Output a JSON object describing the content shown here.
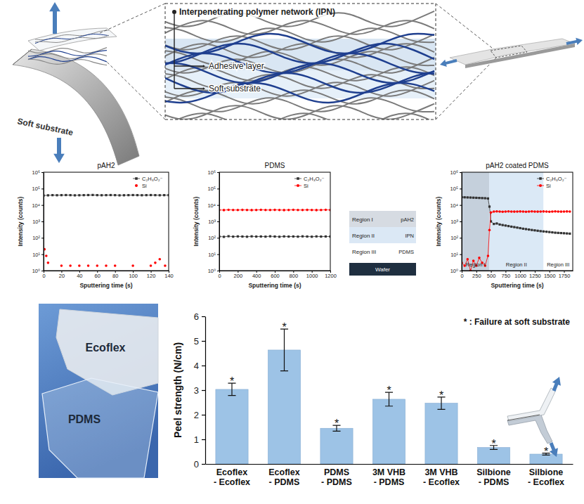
{
  "diagram": {
    "title": "Interpenetrating polymer network (IPN)",
    "layers": [
      "Adhesive layer",
      "Soft substrate"
    ],
    "substrate_label": "Soft substrate"
  },
  "chart_data": [
    {
      "type": "line",
      "title": "pAH2",
      "x_label": "Sputtering time (s)",
      "y_label": "Intensity (counts)",
      "log": "y",
      "xlim": [
        0,
        140
      ],
      "xticks": [
        0,
        20,
        40,
        60,
        80,
        100,
        120,
        140
      ],
      "ylim": [
        1,
        1000000
      ],
      "yticks": [
        {
          "value": 1,
          "label": "10⁰"
        },
        {
          "value": 10,
          "label": "10¹"
        },
        {
          "value": 100,
          "label": "10²"
        },
        {
          "value": 1000,
          "label": "10³"
        },
        {
          "value": 10000,
          "label": "10⁴"
        },
        {
          "value": 100000,
          "label": "10⁵"
        },
        {
          "value": 1000000,
          "label": "10⁶"
        }
      ],
      "legend": "upper right",
      "series": [
        {
          "name": "C₂H₃O₂⁻",
          "color": "#333333",
          "marker": "square",
          "x": [
            0,
            5,
            10,
            15,
            20,
            25,
            30,
            35,
            40,
            45,
            50,
            55,
            60,
            65,
            70,
            75,
            80,
            85,
            90,
            95,
            100,
            105,
            110,
            115,
            120,
            125,
            130,
            135,
            140
          ],
          "values": [
            38000,
            39000,
            40000,
            39500,
            40000,
            40500,
            40000,
            39000,
            39500,
            40000,
            40500,
            41000,
            40000,
            39500,
            40000,
            40500,
            40000,
            39000,
            39500,
            40000,
            40500,
            40000,
            39500,
            40000,
            40500,
            40000,
            39500,
            40000,
            40000
          ]
        },
        {
          "name": "Si",
          "color": "#ff0000",
          "marker": "circle",
          "type": "scatter",
          "x": [
            1,
            3,
            5,
            20,
            30,
            40,
            50,
            60,
            70,
            80,
            100,
            120,
            125,
            130,
            136
          ],
          "values": [
            20,
            8,
            3,
            2,
            2,
            2,
            2,
            2,
            2,
            2,
            2,
            2,
            3,
            5,
            2
          ]
        }
      ]
    },
    {
      "type": "line",
      "title": "PDMS",
      "x_label": "Sputtering time (s)",
      "y_label": "Intensity (counts)",
      "log": "y",
      "xlim": [
        0,
        1200
      ],
      "xticks": [
        0,
        200,
        400,
        600,
        800,
        1000,
        1200
      ],
      "ylim": [
        1,
        1000000
      ],
      "yticks": [
        {
          "value": 1,
          "label": "10⁰"
        },
        {
          "value": 10,
          "label": "10¹"
        },
        {
          "value": 100,
          "label": "10²"
        },
        {
          "value": 1000,
          "label": "10³"
        },
        {
          "value": 10000,
          "label": "10⁴"
        },
        {
          "value": 100000,
          "label": "10⁵"
        },
        {
          "value": 1000000,
          "label": "10⁶"
        }
      ],
      "legend": "upper right",
      "series": [
        {
          "name": "C₂H₃O₂⁻",
          "color": "#333333",
          "marker": "square",
          "x": [
            0,
            50,
            100,
            150,
            200,
            250,
            300,
            350,
            400,
            450,
            500,
            550,
            600,
            650,
            700,
            750,
            800,
            850,
            900,
            950,
            1000,
            1050,
            1100,
            1150,
            1200
          ],
          "values": [
            120,
            115,
            125,
            118,
            122,
            120,
            117,
            123,
            119,
            121,
            118,
            124,
            120,
            116,
            122,
            119,
            121,
            118,
            123,
            120,
            117,
            122,
            119,
            121,
            120
          ]
        },
        {
          "name": "Si",
          "color": "#ff0000",
          "marker": "circle",
          "x": [
            0,
            50,
            100,
            150,
            200,
            250,
            300,
            350,
            400,
            450,
            500,
            550,
            600,
            650,
            700,
            750,
            800,
            850,
            900,
            950,
            1000,
            1050,
            1100,
            1150,
            1200
          ],
          "values": [
            5000,
            4900,
            5100,
            5000,
            4950,
            5050,
            5000,
            4900,
            5000,
            5100,
            5000,
            4950,
            5050,
            5000,
            4900,
            5000,
            5100,
            5000,
            4950,
            5050,
            5000,
            4900,
            5000,
            5100,
            5000
          ]
        }
      ]
    },
    {
      "type": "line",
      "title": "pAH2 coated PDMS",
      "x_label": "Sputtering time (s)",
      "y_label": "Intensity (counts)",
      "log": "y",
      "xlim": [
        0,
        1900
      ],
      "xticks": [
        0,
        250,
        500,
        750,
        1000,
        1250,
        1500,
        1750
      ],
      "ylim": [
        1,
        1000000
      ],
      "yticks": [
        {
          "value": 1,
          "label": "10⁰"
        },
        {
          "value": 10,
          "label": "10¹"
        },
        {
          "value": 100,
          "label": "10²"
        },
        {
          "value": 1000,
          "label": "10³"
        },
        {
          "value": 10000,
          "label": "10⁴"
        },
        {
          "value": 100000,
          "label": "10⁵"
        },
        {
          "value": 1000000,
          "label": "10⁶"
        }
      ],
      "legend": "upper right",
      "regions": [
        {
          "label": "Region I",
          "start": 0,
          "end": 470
        },
        {
          "label": "Region II",
          "start": 470,
          "end": 1400
        },
        {
          "label": "Region III",
          "start": 1400,
          "end": 1900
        }
      ],
      "series": [
        {
          "name": "C₂H₃O₂⁻",
          "color": "#333333",
          "marker": "square",
          "x": [
            0,
            50,
            100,
            150,
            200,
            250,
            300,
            350,
            400,
            450,
            475,
            500,
            550,
            600,
            650,
            700,
            750,
            800,
            850,
            900,
            950,
            1000,
            1050,
            1100,
            1150,
            1200,
            1250,
            1300,
            1350,
            1400,
            1450,
            1500,
            1550,
            1600,
            1650,
            1700,
            1750,
            1800,
            1850
          ],
          "values": [
            30000,
            29500,
            29000,
            28500,
            28000,
            27500,
            27000,
            26500,
            26000,
            25000,
            8000,
            1000,
            700,
            750,
            650,
            600,
            560,
            520,
            480,
            450,
            420,
            390,
            360,
            340,
            320,
            300,
            285,
            270,
            255,
            245,
            235,
            225,
            215,
            205,
            200,
            195,
            190,
            185,
            180
          ]
        },
        {
          "name": "Si",
          "color": "#ff0000",
          "marker": "circle",
          "x": [
            0,
            50,
            100,
            150,
            200,
            250,
            300,
            350,
            400,
            450,
            475,
            500,
            550,
            600,
            650,
            700,
            750,
            800,
            850,
            900,
            950,
            1000,
            1050,
            1100,
            1150,
            1200,
            1250,
            1300,
            1350,
            1400,
            1450,
            1500,
            1550,
            1600,
            1650,
            1700,
            1750,
            1800,
            1850
          ],
          "values": [
            3,
            2,
            5,
            1,
            4,
            2,
            6,
            3,
            2,
            8,
            300,
            3500,
            4000,
            4100,
            4000,
            3900,
            4000,
            4100,
            4000,
            3950,
            4000,
            4050,
            4000,
            3900,
            4000,
            4100,
            4000,
            3950,
            4000,
            4050,
            4000,
            3900,
            4000,
            4100,
            4000,
            3950,
            4000,
            4050,
            4000
          ]
        }
      ]
    },
    {
      "type": "bar",
      "y_label": "Peel strength (N/cm)",
      "categories": [
        "Ecoflex\n- Ecoflex",
        "Ecoflex\n- PDMS",
        "PDMS\n- PDMS",
        "3M VHB\n- PDMS",
        "3M VHB\n- Ecoflex",
        "Silbione\n- PDMS",
        "Silbione\n- Ecoflex"
      ],
      "values": [
        3.03,
        4.63,
        1.45,
        2.63,
        2.47,
        0.67,
        0.4
      ],
      "errors": [
        0.25,
        0.85,
        0.12,
        0.28,
        0.25,
        0.08,
        0.04
      ],
      "bar_notes": [
        "*",
        "*",
        "*",
        "*",
        "*",
        "*",
        "*"
      ],
      "annotation": "* : Failure at soft  substrate",
      "color": "#9dc3e6",
      "ylim": [
        0,
        6
      ],
      "yticks": [
        0,
        1,
        2,
        3,
        4,
        5,
        6
      ]
    }
  ],
  "layer_stack": {
    "rows": [
      {
        "region": "Region I",
        "material": "pAH2"
      },
      {
        "region": "Region II",
        "material": "IPN"
      },
      {
        "region": "Region III",
        "material": "PDMS"
      },
      {
        "material": "Wafer"
      }
    ]
  },
  "photo": {
    "labels": [
      "Ecoflex",
      "PDMS"
    ]
  }
}
